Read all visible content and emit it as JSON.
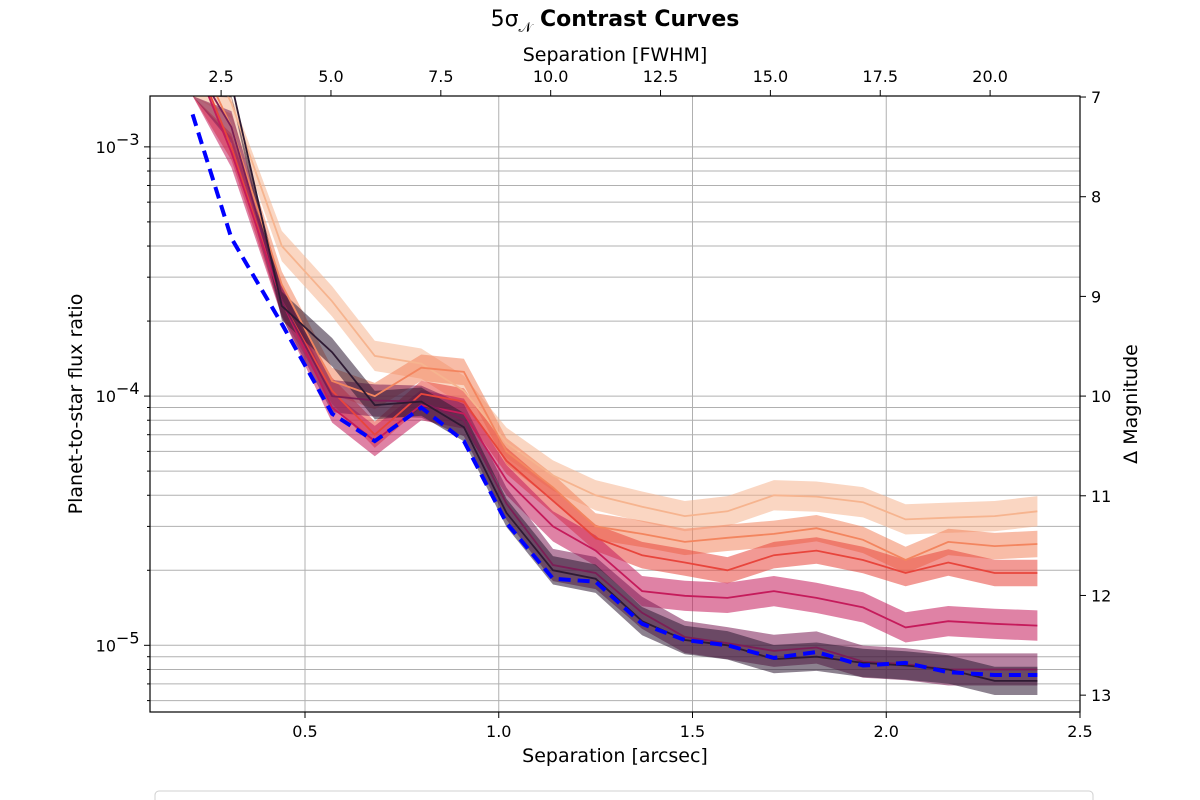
{
  "chart_data": {
    "type": "line",
    "title_prefix": "5σ",
    "title_subscript": "𝒩",
    "title_main": "Contrast Curves",
    "xlabel": "Separation [arcsec]",
    "ylabel": "Planet-to-star flux ratio",
    "top_xlabel": "Separation [FWHM]",
    "right_ylabel": "Δ Magnitude",
    "xlim": [
      0.1,
      2.5
    ],
    "ylim": [
      5.4e-06,
      0.0016
    ],
    "yscale": "log",
    "grid": "on",
    "xticks": [
      {
        "value": 0.5,
        "label": "0.5"
      },
      {
        "value": 1.0,
        "label": "1.0"
      },
      {
        "value": 1.5,
        "label": "1.5"
      },
      {
        "value": 2.0,
        "label": "2.0"
      },
      {
        "value": 2.5,
        "label": "2.5"
      }
    ],
    "yticks_major": [
      {
        "value": 1e-05,
        "base": "10",
        "exp": "−5"
      },
      {
        "value": 0.0001,
        "base": "10",
        "exp": "−4"
      },
      {
        "value": 0.001,
        "base": "10",
        "exp": "−3"
      }
    ],
    "top_ticks": [
      {
        "fwhm": 2.5,
        "label": "2.5"
      },
      {
        "fwhm": 5.0,
        "label": "5.0"
      },
      {
        "fwhm": 7.5,
        "label": "7.5"
      },
      {
        "fwhm": 10.0,
        "label": "10.0"
      },
      {
        "fwhm": 12.5,
        "label": "12.5"
      },
      {
        "fwhm": 15.0,
        "label": "15.0"
      },
      {
        "fwhm": 17.5,
        "label": "17.5"
      },
      {
        "fwhm": 20.0,
        "label": "20.0"
      }
    ],
    "fwhm_arcsec": 0.1134,
    "right_ticks": [
      {
        "dmag": 7,
        "label": "7"
      },
      {
        "dmag": 8,
        "label": "8"
      },
      {
        "dmag": 9,
        "label": "9"
      },
      {
        "dmag": 10,
        "label": "10"
      },
      {
        "dmag": 11,
        "label": "11"
      },
      {
        "dmag": 12,
        "label": "12"
      },
      {
        "dmag": 13,
        "label": "13"
      }
    ],
    "x": [
      0.21,
      0.31,
      0.44,
      0.57,
      0.68,
      0.8,
      0.91,
      1.02,
      1.14,
      1.25,
      1.37,
      1.48,
      1.59,
      1.71,
      1.82,
      1.94,
      2.05,
      2.16,
      2.28,
      2.39
    ],
    "series": [
      {
        "color": "#f6b48f",
        "band": 0.15,
        "values": [
          0.003,
          0.0015,
          0.0004,
          0.00024,
          0.000145,
          0.000135,
          0.000105,
          6.5e-05,
          4.8e-05,
          4e-05,
          3.6e-05,
          3.3e-05,
          3.45e-05,
          4e-05,
          3.95e-05,
          3.75e-05,
          3.2e-05,
          3.25e-05,
          3.3e-05,
          3.45e-05
        ]
      },
      {
        "color": "#f3855f",
        "band": 0.13,
        "values": [
          0.0026,
          0.0012,
          0.00028,
          0.000115,
          0.0001,
          0.00013,
          0.000125,
          6e-05,
          4.3e-05,
          3e-05,
          2.8e-05,
          2.6e-05,
          2.7e-05,
          2.8e-05,
          2.95e-05,
          2.65e-05,
          2.2e-05,
          2.6e-05,
          2.5e-05,
          2.55e-05
        ]
      },
      {
        "color": "#e8453c",
        "band": 0.13,
        "values": [
          0.0024,
          0.001,
          0.00024,
          0.000105,
          7e-05,
          0.000102,
          9.5e-05,
          5.5e-05,
          3.8e-05,
          2.7e-05,
          2.3e-05,
          2.15e-05,
          2e-05,
          2.3e-05,
          2.4e-05,
          2.2e-05,
          1.95e-05,
          2.15e-05,
          1.95e-05,
          1.95e-05
        ]
      },
      {
        "color": "#c51b5b",
        "band": 0.15,
        "values": [
          0.0023,
          0.00095,
          0.00024,
          9e-05,
          6.6e-05,
          9.2e-05,
          8.5e-05,
          4.6e-05,
          3e-05,
          2.4e-05,
          1.65e-05,
          1.58e-05,
          1.55e-05,
          1.65e-05,
          1.55e-05,
          1.42e-05,
          1.18e-05,
          1.25e-05,
          1.22e-05,
          1.2e-05
        ]
      },
      {
        "color": "#7b1e56",
        "band": 0.16,
        "values": [
          0.0022,
          0.0012,
          0.00024,
          0.0001,
          9.6e-05,
          9.5e-05,
          8e-05,
          3.7e-05,
          2.1e-05,
          1.95e-05,
          1.35e-05,
          1.08e-05,
          1.02e-05,
          9.5e-06,
          9.8e-06,
          8.6e-06,
          8.4e-06,
          8e-06,
          8e-06,
          8e-06
        ]
      },
      {
        "color": "#2e1a33",
        "band": 0.14,
        "values": [
          0.0026,
          0.0018,
          0.00023,
          0.00015,
          9.2e-05,
          9.5e-05,
          7.5e-05,
          3.4e-05,
          2e-05,
          1.85e-05,
          1.25e-05,
          1.05e-05,
          1e-05,
          8.8e-06,
          9e-06,
          8.5e-06,
          8.3e-06,
          8e-06,
          7.2e-06,
          7.2e-06
        ]
      }
    ],
    "best_curve": {
      "color": "#0000ff",
      "style": "dashed",
      "values": [
        0.00135,
        0.00043,
        0.000195,
        8.5e-05,
        6.6e-05,
        9e-05,
        6.6e-05,
        3.1e-05,
        1.85e-05,
        1.8e-05,
        1.22e-05,
        1.05e-05,
        1e-05,
        8.9e-06,
        9.4e-06,
        8.3e-06,
        8.5e-06,
        7.8e-06,
        7.6e-06,
        7.6e-06
      ]
    }
  }
}
